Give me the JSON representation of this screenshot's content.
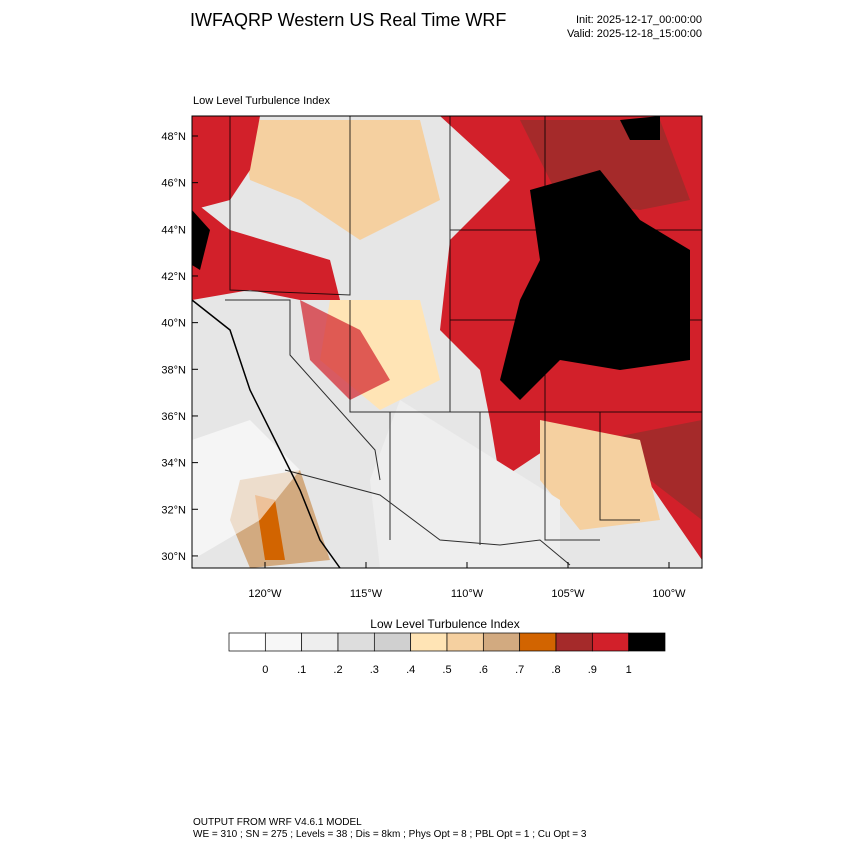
{
  "header": {
    "title": "IWFAQRP Western US Real Time WRF",
    "init": "Init: 2025-12-17_00:00:00",
    "valid": "Valid: 2025-12-18_15:00:00"
  },
  "map": {
    "subtitle": "Low Level Turbulence Index",
    "lat_ticks": [
      {
        "value": 48,
        "label": "48°N"
      },
      {
        "value": 46,
        "label": "46°N"
      },
      {
        "value": 44,
        "label": "44°N"
      },
      {
        "value": 42,
        "label": "42°N"
      },
      {
        "value": 40,
        "label": "40°N"
      },
      {
        "value": 38,
        "label": "38°N"
      },
      {
        "value": 36,
        "label": "36°N"
      },
      {
        "value": 34,
        "label": "34°N"
      },
      {
        "value": 32,
        "label": "32°N"
      },
      {
        "value": 30,
        "label": "30°N"
      }
    ],
    "lon_ticks": [
      {
        "value": -120,
        "label": "120°W"
      },
      {
        "value": -115,
        "label": "115°W"
      },
      {
        "value": -110,
        "label": "110°W"
      },
      {
        "value": -105,
        "label": "105°W"
      },
      {
        "value": -100,
        "label": "100°W"
      }
    ]
  },
  "colorbar": {
    "title": "Low Level Turbulence Index",
    "colors": [
      "#ffffff",
      "#f7f7f7",
      "#eeeeee",
      "#dddddd",
      "#d0d0d0",
      "#ffe4b5",
      "#f5d0a0",
      "#d2aa80",
      "#d26400",
      "#a52a2a",
      "#d2202a",
      "#000000"
    ],
    "ticks": [
      0,
      {
        "value": 0.1,
        "label": ".1"
      },
      {
        "value": 0.2,
        "label": ".2"
      },
      {
        "value": 0.3,
        "label": ".3"
      },
      {
        "value": 0.4,
        "label": ".4"
      },
      {
        "value": 0.5,
        "label": ".5"
      },
      {
        "value": 0.6,
        "label": ".6"
      },
      {
        "value": 0.7,
        "label": ".7"
      },
      {
        "value": 0.8,
        "label": ".8"
      },
      {
        "value": 0.9,
        "label": ".9"
      },
      1
    ]
  },
  "footer": {
    "line1": "OUTPUT FROM WRF V4.6.1 MODEL",
    "line2": "WE = 310 ; SN = 275 ; Levels = 38 ; Dis = 8km ; Phys Opt = 8 ; PBL Opt = 1 ; Cu Opt = 3"
  }
}
